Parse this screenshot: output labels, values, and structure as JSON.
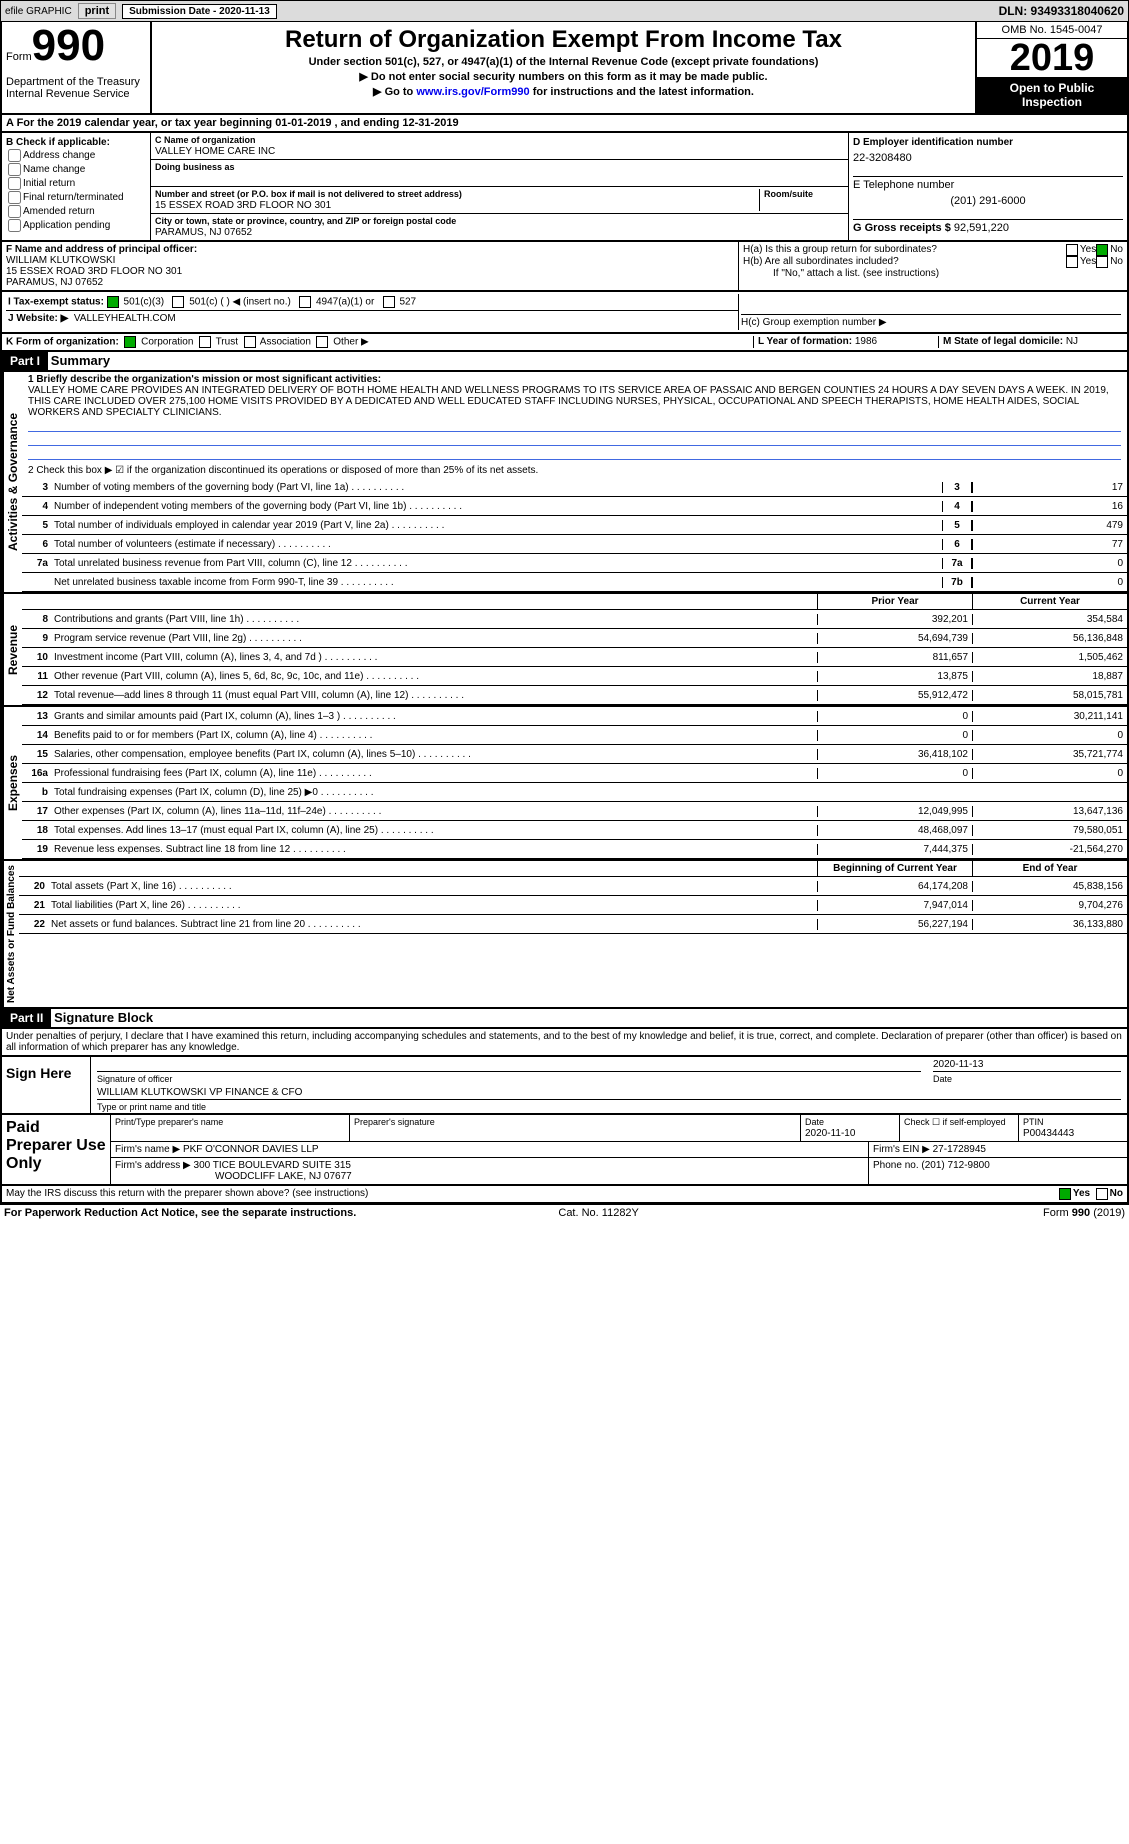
{
  "efile": {
    "label1": "efile GRAPHIC",
    "label2": "print",
    "submission_label": "Submission Date - 2020-11-13",
    "dln_label": "DLN: 93493318040620"
  },
  "header": {
    "form_word": "Form",
    "form_no": "990",
    "dept": "Department of the Treasury\nInternal Revenue Service",
    "title": "Return of Organization Exempt From Income Tax",
    "subtitle": "Under section 501(c), 527, or 4947(a)(1) of the Internal Revenue Code (except private foundations)",
    "arrow1": "▶ Do not enter social security numbers on this form as it may be made public.",
    "arrow2_pre": "▶ Go to ",
    "arrow2_link": "www.irs.gov/Form990",
    "arrow2_post": " for instructions and the latest information.",
    "omb": "OMB No. 1545-0047",
    "year": "2019",
    "open": "Open to Public Inspection"
  },
  "row_a": "A For the 2019 calendar year, or tax year beginning 01-01-2019   , and ending 12-31-2019",
  "box_b": {
    "hd": "B Check if applicable:",
    "items": [
      "Address change",
      "Name change",
      "Initial return",
      "Final return/terminated",
      "Amended return",
      "Application pending"
    ]
  },
  "box_c": {
    "name_lbl": "C Name of organization",
    "name": "VALLEY HOME CARE INC",
    "dba_lbl": "Doing business as",
    "dba": "",
    "addr_lbl": "Number and street (or P.O. box if mail is not delivered to street address)",
    "room_lbl": "Room/suite",
    "addr": "15 ESSEX ROAD 3RD FLOOR NO 301",
    "city_lbl": "City or town, state or province, country, and ZIP or foreign postal code",
    "city": "PARAMUS, NJ  07652"
  },
  "box_d": {
    "ein_lbl": "D Employer identification number",
    "ein": "22-3208480",
    "tel_lbl": "E Telephone number",
    "tel": "(201) 291-6000",
    "gross_lbl": "G Gross receipts $",
    "gross": "92,591,220"
  },
  "box_f": {
    "lbl": "F Name and address of principal officer:",
    "name": "WILLIAM KLUTKOWSKI",
    "addr": "15 ESSEX ROAD 3RD FLOOR NO 301",
    "city": "PARAMUS, NJ  07652"
  },
  "box_h": {
    "ha": "H(a) Is this a group return for subordinates?",
    "ha_yes": "Yes",
    "ha_no": "No",
    "hb": "H(b) Are all subordinates included?",
    "hb_if": "If \"No,\" attach a list. (see instructions)",
    "hc": "H(c) Group exemption number ▶"
  },
  "row_i": {
    "lbl": "I   Tax-exempt status:",
    "opts": [
      "501(c)(3)",
      "501(c) (   ) ◀ (insert no.)",
      "4947(a)(1) or",
      "527"
    ]
  },
  "row_j": {
    "lbl": "J   Website: ▶",
    "val": "VALLEYHEALTH.COM"
  },
  "row_k": {
    "lbl": "K Form of organization:",
    "opts": [
      "Corporation",
      "Trust",
      "Association",
      "Other ▶"
    ]
  },
  "row_l": {
    "lbl": "L Year of formation:",
    "val": "1986"
  },
  "row_m": {
    "lbl": "M State of legal domicile:",
    "val": "NJ"
  },
  "part1": {
    "hd": "Part I",
    "title": "Summary",
    "q1_lbl": "1 Briefly describe the organization's mission or most significant activities:",
    "q1_text": "VALLEY HOME CARE PROVIDES AN INTEGRATED DELIVERY OF BOTH HOME HEALTH AND WELLNESS PROGRAMS TO ITS SERVICE AREA OF PASSAIC AND BERGEN COUNTIES 24 HOURS A DAY SEVEN DAYS A WEEK. IN 2019, THIS CARE INCLUDED OVER 275,100 HOME VISITS PROVIDED BY A DEDICATED AND WELL EDUCATED STAFF INCLUDING NURSES, PHYSICAL, OCCUPATIONAL AND SPEECH THERAPISTS, HOME HEALTH AIDES, SOCIAL WORKERS AND SPECIALTY CLINICIANS.",
    "q2": "2   Check this box ▶ ☑ if the organization discontinued its operations or disposed of more than 25% of its net assets.",
    "vtab_gov": "Activities & Governance",
    "vtab_rev": "Revenue",
    "vtab_exp": "Expenses",
    "vtab_net": "Net Assets or Fund Balances"
  },
  "lines_gov": [
    {
      "n": "3",
      "t": "Number of voting members of the governing body (Part VI, line 1a)",
      "box": "3",
      "v": "17"
    },
    {
      "n": "4",
      "t": "Number of independent voting members of the governing body (Part VI, line 1b)",
      "box": "4",
      "v": "16"
    },
    {
      "n": "5",
      "t": "Total number of individuals employed in calendar year 2019 (Part V, line 2a)",
      "box": "5",
      "v": "479"
    },
    {
      "n": "6",
      "t": "Total number of volunteers (estimate if necessary)",
      "box": "6",
      "v": "77"
    },
    {
      "n": "7a",
      "t": "Total unrelated business revenue from Part VIII, column (C), line 12",
      "box": "7a",
      "v": "0"
    },
    {
      "n": "",
      "t": "Net unrelated business taxable income from Form 990-T, line 39",
      "box": "7b",
      "v": "0"
    }
  ],
  "col_hdr": {
    "prior": "Prior Year",
    "curr": "Current Year",
    "beg": "Beginning of Current Year",
    "end": "End of Year"
  },
  "lines_rev": [
    {
      "n": "8",
      "t": "Contributions and grants (Part VIII, line 1h)",
      "p": "392,201",
      "c": "354,584"
    },
    {
      "n": "9",
      "t": "Program service revenue (Part VIII, line 2g)",
      "p": "54,694,739",
      "c": "56,136,848"
    },
    {
      "n": "10",
      "t": "Investment income (Part VIII, column (A), lines 3, 4, and 7d )",
      "p": "811,657",
      "c": "1,505,462"
    },
    {
      "n": "11",
      "t": "Other revenue (Part VIII, column (A), lines 5, 6d, 8c, 9c, 10c, and 11e)",
      "p": "13,875",
      "c": "18,887"
    },
    {
      "n": "12",
      "t": "Total revenue—add lines 8 through 11 (must equal Part VIII, column (A), line 12)",
      "p": "55,912,472",
      "c": "58,015,781"
    }
  ],
  "lines_exp": [
    {
      "n": "13",
      "t": "Grants and similar amounts paid (Part IX, column (A), lines 1–3 )",
      "p": "0",
      "c": "30,211,141"
    },
    {
      "n": "14",
      "t": "Benefits paid to or for members (Part IX, column (A), line 4)",
      "p": "0",
      "c": "0"
    },
    {
      "n": "15",
      "t": "Salaries, other compensation, employee benefits (Part IX, column (A), lines 5–10)",
      "p": "36,418,102",
      "c": "35,721,774"
    },
    {
      "n": "16a",
      "t": "Professional fundraising fees (Part IX, column (A), line 11e)",
      "p": "0",
      "c": "0"
    },
    {
      "n": "b",
      "t": "Total fundraising expenses (Part IX, column (D), line 25) ▶0",
      "p": "",
      "c": "",
      "shade": true
    },
    {
      "n": "17",
      "t": "Other expenses (Part IX, column (A), lines 11a–11d, 11f–24e)",
      "p": "12,049,995",
      "c": "13,647,136"
    },
    {
      "n": "18",
      "t": "Total expenses. Add lines 13–17 (must equal Part IX, column (A), line 25)",
      "p": "48,468,097",
      "c": "79,580,051"
    },
    {
      "n": "19",
      "t": "Revenue less expenses. Subtract line 18 from line 12",
      "p": "7,444,375",
      "c": "-21,564,270"
    }
  ],
  "lines_net": [
    {
      "n": "20",
      "t": "Total assets (Part X, line 16)",
      "p": "64,174,208",
      "c": "45,838,156"
    },
    {
      "n": "21",
      "t": "Total liabilities (Part X, line 26)",
      "p": "7,947,014",
      "c": "9,704,276"
    },
    {
      "n": "22",
      "t": "Net assets or fund balances. Subtract line 21 from line 20",
      "p": "56,227,194",
      "c": "36,133,880"
    }
  ],
  "part2": {
    "hd": "Part II",
    "title": "Signature Block",
    "decl": "Under penalties of perjury, I declare that I have examined this return, including accompanying schedules and statements, and to the best of my knowledge and belief, it is true, correct, and complete. Declaration of preparer (other than officer) is based on all information of which preparer has any knowledge.",
    "sign_here": "Sign Here",
    "sig_off": "Signature of officer",
    "date_lbl": "Date",
    "date": "2020-11-13",
    "name": "WILLIAM KLUTKOWSKI VP FINANCE & CFO",
    "name_lbl": "Type or print name and title"
  },
  "paid": {
    "hd": "Paid Preparer Use Only",
    "prep_name_lbl": "Print/Type preparer's name",
    "prep_sig_lbl": "Preparer's signature",
    "date_lbl": "Date",
    "date": "2020-11-10",
    "self_lbl": "Check ☐ if self-employed",
    "ptin_lbl": "PTIN",
    "ptin": "P00434443",
    "firm_name_lbl": "Firm's name   ▶",
    "firm_name": "PKF O'CONNOR DAVIES LLP",
    "firm_ein_lbl": "Firm's EIN ▶",
    "firm_ein": "27-1728945",
    "firm_addr_lbl": "Firm's address ▶",
    "firm_addr": "300 TICE BOULEVARD SUITE 315",
    "firm_city": "WOODCLIFF LAKE, NJ  07677",
    "phone_lbl": "Phone no.",
    "phone": "(201) 712-9800"
  },
  "discuss": {
    "q": "May the IRS discuss this return with the preparer shown above? (see instructions)",
    "yes": "Yes",
    "no": "No"
  },
  "footer": {
    "l": "For Paperwork Reduction Act Notice, see the separate instructions.",
    "m": "Cat. No. 11282Y",
    "r": "Form 990 (2019)"
  }
}
